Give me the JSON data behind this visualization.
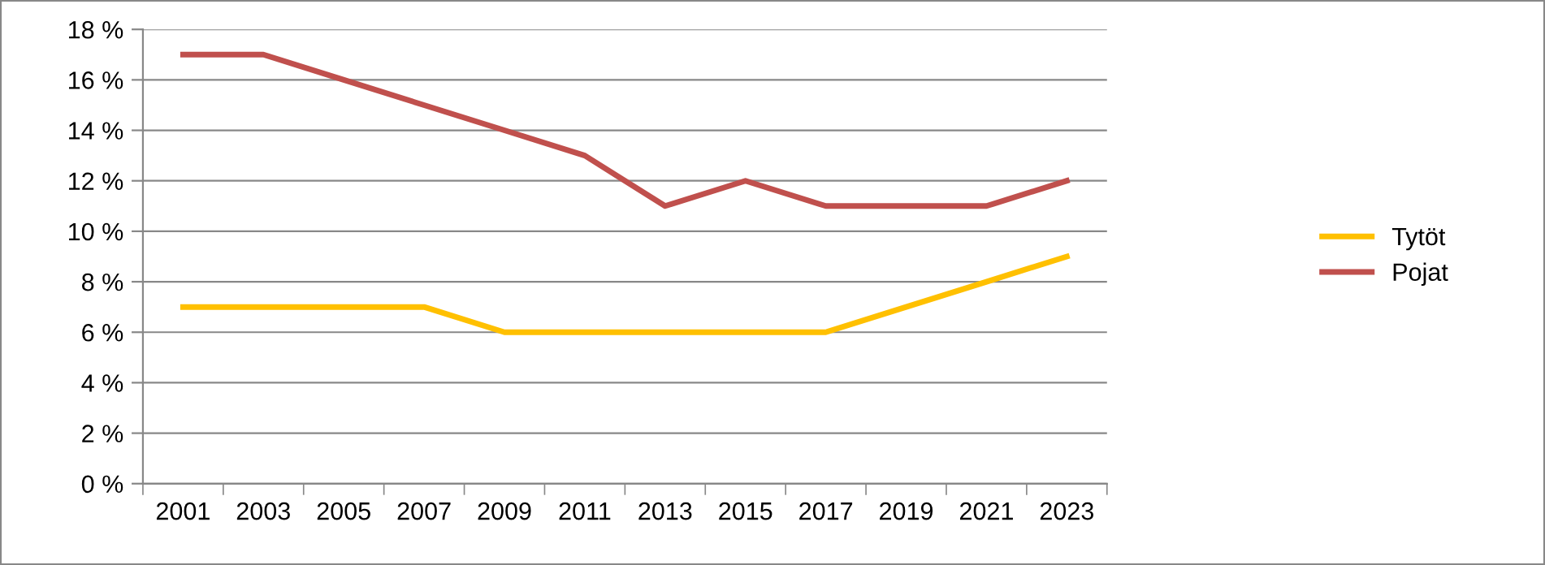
{
  "chart_data": {
    "type": "line",
    "categories": [
      "2001",
      "2003",
      "2005",
      "2007",
      "2009",
      "2011",
      "2013",
      "2015",
      "2017",
      "2019",
      "2021",
      "2023"
    ],
    "series": [
      {
        "name": "Tytöt",
        "color": "#ffc000",
        "values": [
          7,
          7,
          7,
          7,
          6,
          6,
          6,
          6,
          6,
          7,
          8,
          9
        ]
      },
      {
        "name": "Pojat",
        "color": "#c0504d",
        "values": [
          17,
          17,
          16,
          15,
          14,
          13,
          11,
          12,
          11,
          11,
          11,
          12
        ]
      }
    ],
    "ylim": [
      0,
      18
    ],
    "yticks": [
      {
        "value": 0,
        "label": "0 %"
      },
      {
        "value": 2,
        "label": "2 %"
      },
      {
        "value": 4,
        "label": "4 %"
      },
      {
        "value": 6,
        "label": "6 %"
      },
      {
        "value": 8,
        "label": "8 %"
      },
      {
        "value": 10,
        "label": "10 %"
      },
      {
        "value": 12,
        "label": "12 %"
      },
      {
        "value": 14,
        "label": "14 %"
      },
      {
        "value": 16,
        "label": "16 %"
      },
      {
        "value": 18,
        "label": "18 %"
      }
    ],
    "grid": "y",
    "legend": "right",
    "marker": "none",
    "line_style": "solid"
  }
}
